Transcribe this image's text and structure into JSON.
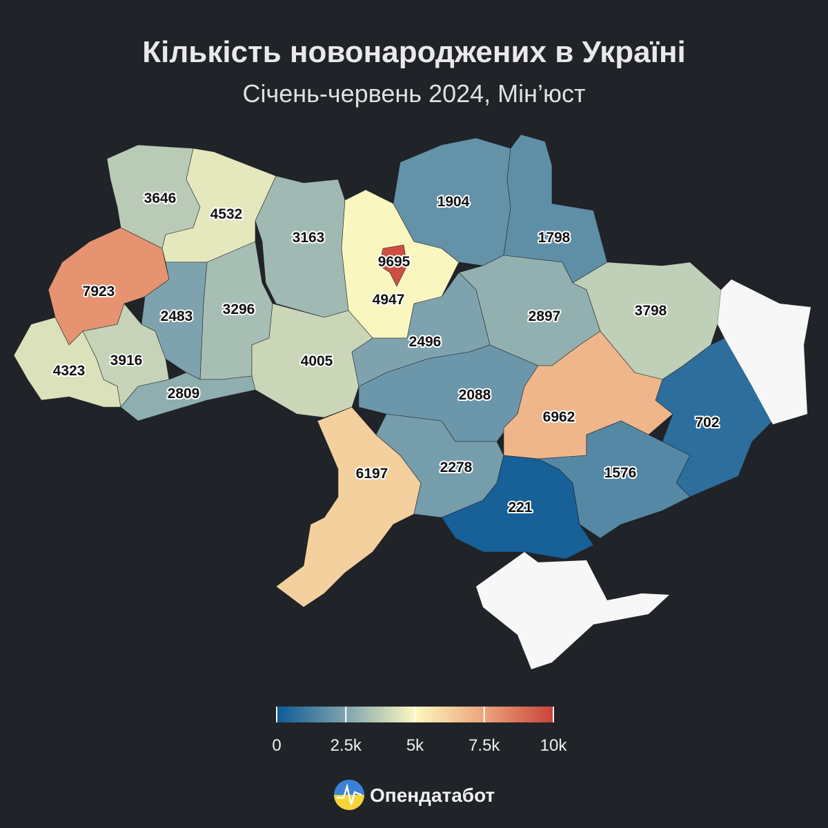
{
  "header": {
    "title": "Кількість новонароджених в Україні",
    "subtitle": "Січень-червень 2024, Мін’юст"
  },
  "map": {
    "type": "choropleth",
    "regions": [
      {
        "value": 3646
      },
      {
        "value": 4532
      },
      {
        "value": 3163
      },
      {
        "value": 4947
      },
      {
        "value": 9695
      },
      {
        "value": 1904
      },
      {
        "value": 1798
      },
      {
        "value": 7923
      },
      {
        "value": 2483
      },
      {
        "value": 3296
      },
      {
        "value": 2897
      },
      {
        "value": 3798
      },
      {
        "value": 4323
      },
      {
        "value": 3916
      },
      {
        "value": 2809
      },
      {
        "value": 4005
      },
      {
        "value": 2496
      },
      {
        "value": 2088
      },
      {
        "value": 6962
      },
      {
        "value": 702
      },
      {
        "value": 6197
      },
      {
        "value": 2278
      },
      {
        "value": 221
      },
      {
        "value": 1576
      }
    ],
    "colorscale": [
      "#0d5a96",
      "#7fa3ae",
      "#fdf8c0",
      "#eba47c",
      "#c9423a"
    ],
    "legend": {
      "range": [
        0,
        10000
      ],
      "ticks": [
        0,
        {
          "value": 2500,
          "label": "2.5k"
        },
        {
          "value": 5000,
          "label": "5k"
        },
        {
          "value": 7500,
          "label": "7.5k"
        },
        {
          "value": 10000,
          "label": "10k"
        }
      ]
    }
  },
  "footer": {
    "brand": "Опендатабот"
  }
}
